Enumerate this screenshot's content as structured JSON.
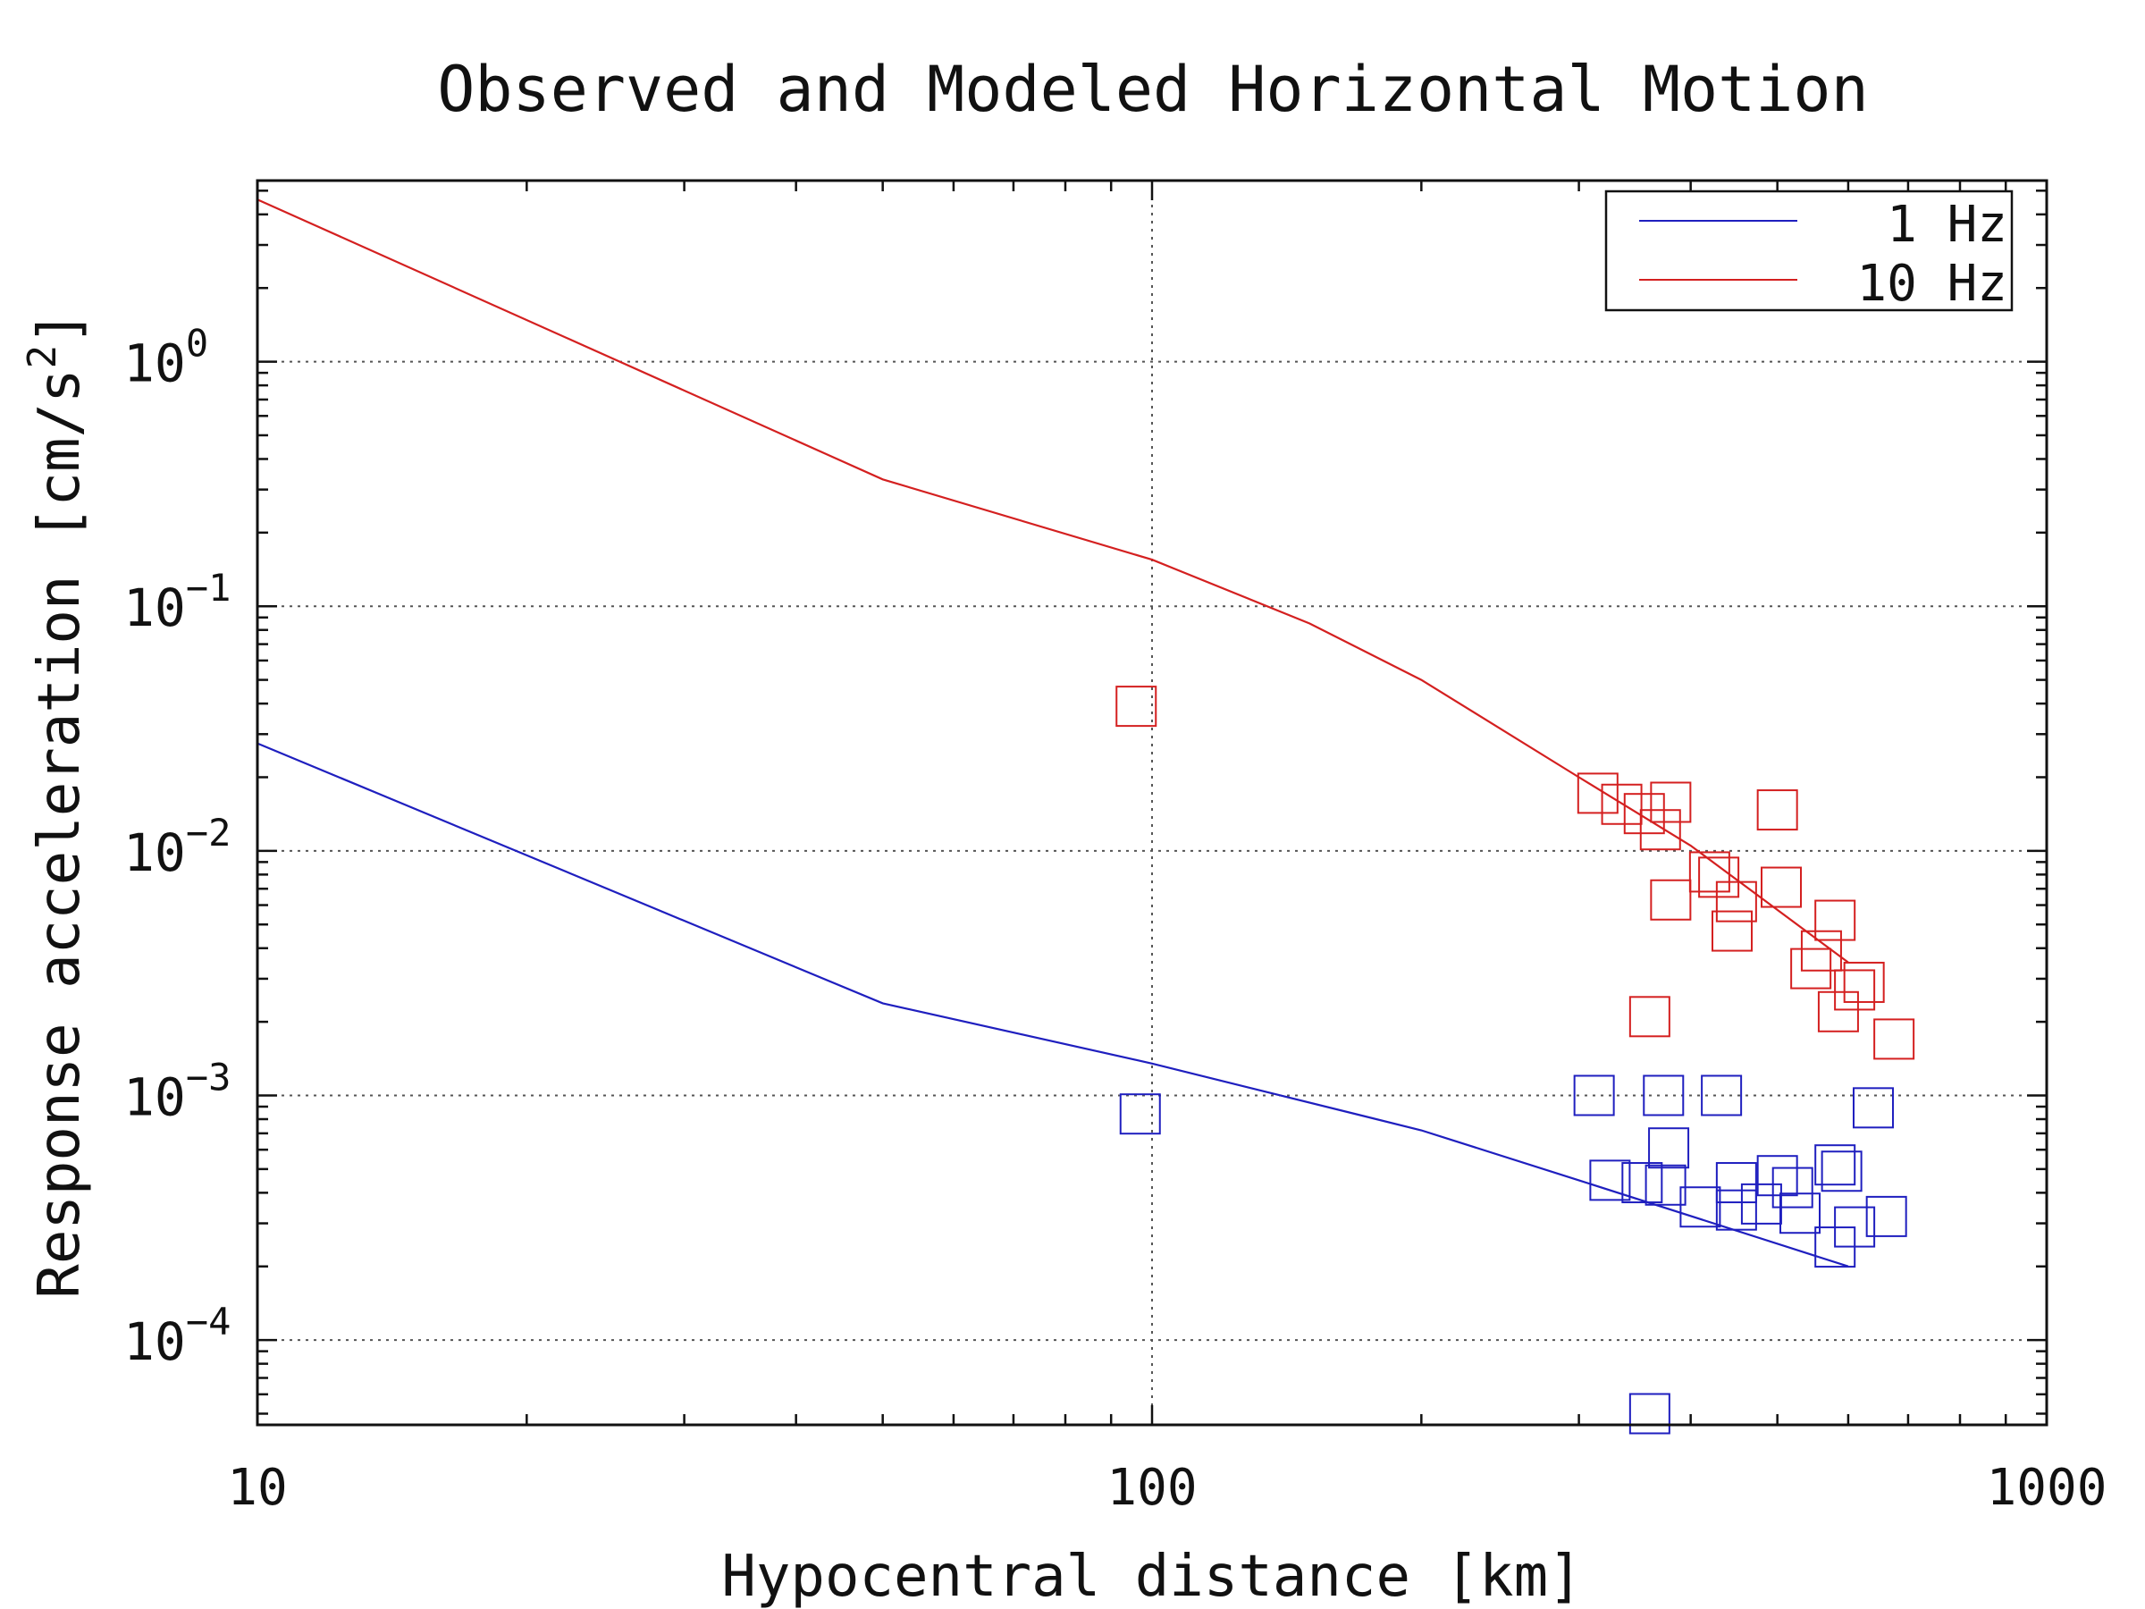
{
  "chart_data": {
    "type": "scatter",
    "title": "Observed and Modeled Horizontal Motion",
    "xlabel": "Hypocentral distance [km]",
    "ylabel": "Response acceleration [cm/s",
    "ylabel_superscript": "2",
    "ylabel_suffix": "]",
    "xscale": "log",
    "yscale": "log",
    "xlim": [
      10,
      1000
    ],
    "ylim": [
      4.5e-05,
      5.5
    ],
    "grid": true,
    "legend_position": "top-right",
    "x_ticks": [
      {
        "value": 10,
        "label": "10"
      },
      {
        "value": 100,
        "label": "100"
      },
      {
        "value": 1000,
        "label": "1000"
      }
    ],
    "y_ticks": [
      {
        "value": 1,
        "base": "10",
        "exp": "0"
      },
      {
        "value": 0.1,
        "base": "10",
        "exp": "−1"
      },
      {
        "value": 0.01,
        "base": "10",
        "exp": "−2"
      },
      {
        "value": 0.001,
        "base": "10",
        "exp": "−3"
      },
      {
        "value": 0.0001,
        "base": "10",
        "exp": "−4"
      }
    ],
    "series": [
      {
        "name": "1 Hz",
        "color": "#1f1fbf",
        "model_x": [
          10,
          50,
          100,
          200,
          300,
          600
        ],
        "model_y": [
          0.0275,
          0.00238,
          0.00135,
          0.00072,
          0.00045,
          0.0002
        ],
        "observed": [
          {
            "x": 97,
            "y": 0.00084
          },
          {
            "x": 312,
            "y": 0.001
          },
          {
            "x": 360,
            "y": 5e-05
          },
          {
            "x": 373,
            "y": 0.001
          },
          {
            "x": 433,
            "y": 0.001
          },
          {
            "x": 378,
            "y": 0.00061
          },
          {
            "x": 325,
            "y": 0.00045
          },
          {
            "x": 353,
            "y": 0.00044
          },
          {
            "x": 375,
            "y": 0.00043
          },
          {
            "x": 410,
            "y": 0.00035
          },
          {
            "x": 450,
            "y": 0.00044
          },
          {
            "x": 450,
            "y": 0.00034
          },
          {
            "x": 480,
            "y": 0.00036
          },
          {
            "x": 500,
            "y": 0.00047
          },
          {
            "x": 520,
            "y": 0.00042
          },
          {
            "x": 530,
            "y": 0.00033
          },
          {
            "x": 580,
            "y": 0.00052
          },
          {
            "x": 590,
            "y": 0.00049
          },
          {
            "x": 580,
            "y": 0.00024
          },
          {
            "x": 610,
            "y": 0.00029
          },
          {
            "x": 640,
            "y": 0.00089
          },
          {
            "x": 662,
            "y": 0.00032
          }
        ]
      },
      {
        "name": "10 Hz",
        "color": "#d42020",
        "model_x": [
          10,
          50,
          100,
          150,
          200,
          300,
          400,
          600
        ],
        "model_y": [
          4.6,
          0.33,
          0.155,
          0.085,
          0.05,
          0.02,
          0.0105,
          0.0035
        ],
        "observed": [
          {
            "x": 96,
            "y": 0.039
          },
          {
            "x": 315,
            "y": 0.0172
          },
          {
            "x": 335,
            "y": 0.0155
          },
          {
            "x": 355,
            "y": 0.0142
          },
          {
            "x": 370,
            "y": 0.0122
          },
          {
            "x": 380,
            "y": 0.0158
          },
          {
            "x": 380,
            "y": 0.0063
          },
          {
            "x": 360,
            "y": 0.0021
          },
          {
            "x": 420,
            "y": 0.0082
          },
          {
            "x": 430,
            "y": 0.0078
          },
          {
            "x": 450,
            "y": 0.0062
          },
          {
            "x": 445,
            "y": 0.0047
          },
          {
            "x": 500,
            "y": 0.0147
          },
          {
            "x": 505,
            "y": 0.0071
          },
          {
            "x": 580,
            "y": 0.0052
          },
          {
            "x": 560,
            "y": 0.0039
          },
          {
            "x": 545,
            "y": 0.0033
          },
          {
            "x": 585,
            "y": 0.0022
          },
          {
            "x": 625,
            "y": 0.0029
          },
          {
            "x": 610,
            "y": 0.0027
          },
          {
            "x": 675,
            "y": 0.0017
          }
        ]
      }
    ]
  }
}
